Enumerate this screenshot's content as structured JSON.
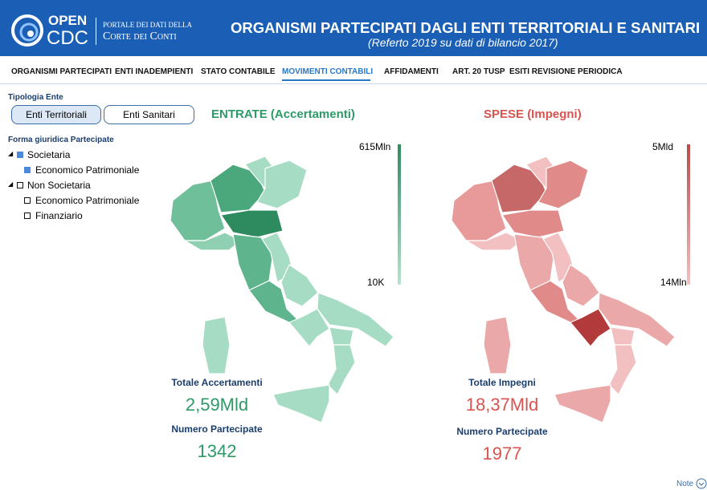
{
  "header": {
    "logo": [
      "OPEN",
      "CDC"
    ],
    "portal": [
      "PORTALE DEI DATI DELLA",
      "Corte dei Conti"
    ],
    "title": "ORGANISMI PARTECIPATI DAGLI ENTI TERRITORIALI E SANITARI",
    "subtitle": "(Referto 2019 su dati di bilancio 2017)"
  },
  "nav": {
    "items": [
      "ORGANISMI PARTECIPATI",
      "ENTI INADEMPIENTI",
      "STATO CONTABILE",
      "MOVIMENTI CONTABILI",
      "AFFIDAMENTI",
      "ART. 20 TUSP",
      "ESITI REVISIONE PERIODICA"
    ],
    "active": 3
  },
  "filters": {
    "tipologia": {
      "label": "Tipologia Ente",
      "options": [
        "Enti Territoriali",
        "Enti Sanitari"
      ],
      "selected": 0
    },
    "forma": {
      "label": "Forma giuridica Partecipate",
      "tree": [
        {
          "label": "Societaria",
          "checked": true,
          "children": [
            {
              "label": "Economico Patrimoniale",
              "checked": true
            }
          ]
        },
        {
          "label": "Non Societaria",
          "checked": false,
          "children": [
            {
              "label": "Economico Patrimoniale",
              "checked": false
            },
            {
              "label": "Finanziario",
              "checked": false
            }
          ]
        }
      ]
    }
  },
  "panels": [
    {
      "title": "ENTRATE (Accertamenti)",
      "color": "#2e9a68",
      "legend_max": "615Mln",
      "legend_min": "10K",
      "total_label": "Totale Accertamenti",
      "total": "2,59Mld",
      "count_label": "Numero Partecipate",
      "count": 1342
    },
    {
      "title": "SPESE (Impegni)",
      "color": "#d9534f",
      "legend_max": "5Mld",
      "legend_min": "14Mln",
      "total_label": "Totale Impegni",
      "total": "18,37Mld",
      "count_label": "Numero Partecipate",
      "count": 1977
    }
  ],
  "footer": {
    "note": "Note"
  }
}
